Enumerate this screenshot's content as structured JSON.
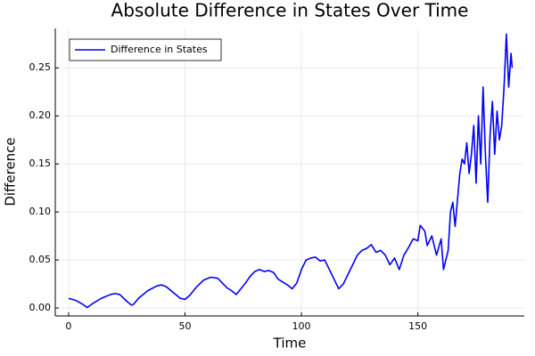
{
  "chart_data": {
    "type": "line",
    "title": "Absolute Difference in States Over Time",
    "x_label": "Time",
    "y_label": "Difference",
    "x": [
      0,
      3,
      6,
      8,
      10,
      14,
      18,
      20,
      22,
      25,
      27,
      28,
      30,
      34,
      38,
      40,
      42,
      45,
      48,
      50,
      52,
      55,
      58,
      61,
      64,
      66,
      68,
      70,
      72,
      74,
      76,
      78,
      80,
      82,
      84,
      86,
      88,
      90,
      92,
      94,
      96,
      98,
      100,
      102,
      104,
      106,
      108,
      110,
      112,
      114,
      116,
      118,
      120,
      122,
      124,
      126,
      128,
      130,
      132,
      134,
      136,
      138,
      140,
      142,
      144,
      146,
      148,
      150,
      151,
      153,
      154,
      156,
      158,
      160,
      161,
      163,
      164,
      165,
      166,
      168,
      169,
      170,
      171,
      172,
      173,
      174,
      175,
      176,
      177,
      178,
      179,
      180,
      181,
      182,
      183,
      184,
      185,
      186,
      187,
      188,
      189,
      190,
      190.5
    ],
    "series": [
      {
        "name": "Difference in States",
        "color": "#0000ff",
        "values": [
          0.01,
          0.008,
          0.004,
          0.0005,
          0.004,
          0.01,
          0.014,
          0.015,
          0.014,
          0.007,
          0.003,
          0.004,
          0.01,
          0.018,
          0.023,
          0.024,
          0.022,
          0.016,
          0.01,
          0.009,
          0.013,
          0.022,
          0.029,
          0.032,
          0.031,
          0.026,
          0.021,
          0.018,
          0.014,
          0.02,
          0.026,
          0.033,
          0.038,
          0.04,
          0.038,
          0.039,
          0.037,
          0.03,
          0.027,
          0.024,
          0.02,
          0.026,
          0.04,
          0.05,
          0.052,
          0.053,
          0.049,
          0.05,
          0.04,
          0.03,
          0.02,
          0.025,
          0.035,
          0.045,
          0.055,
          0.06,
          0.062,
          0.066,
          0.058,
          0.06,
          0.055,
          0.045,
          0.052,
          0.04,
          0.055,
          0.063,
          0.072,
          0.07,
          0.086,
          0.08,
          0.065,
          0.075,
          0.055,
          0.072,
          0.04,
          0.06,
          0.1,
          0.11,
          0.085,
          0.14,
          0.155,
          0.15,
          0.172,
          0.14,
          0.16,
          0.19,
          0.13,
          0.2,
          0.15,
          0.23,
          0.16,
          0.11,
          0.18,
          0.215,
          0.16,
          0.205,
          0.175,
          0.19,
          0.23,
          0.285,
          0.23,
          0.265,
          0.25
        ]
      }
    ],
    "xlim": [
      -5.7,
      195.7
    ],
    "xticks": [
      0,
      50,
      100,
      150
    ],
    "ylim": [
      -0.0083,
      0.291
    ],
    "yticks": [
      {
        "value": 0,
        "label": "0.00"
      },
      {
        "value": 0.05,
        "label": "0.05"
      },
      {
        "value": 0.1,
        "label": "0.10"
      },
      {
        "value": 0.15,
        "label": "0.15"
      },
      {
        "value": 0.2,
        "label": "0.20"
      },
      {
        "value": 0.25,
        "label": "0.25"
      }
    ],
    "grid": true,
    "legend": "top-left"
  }
}
